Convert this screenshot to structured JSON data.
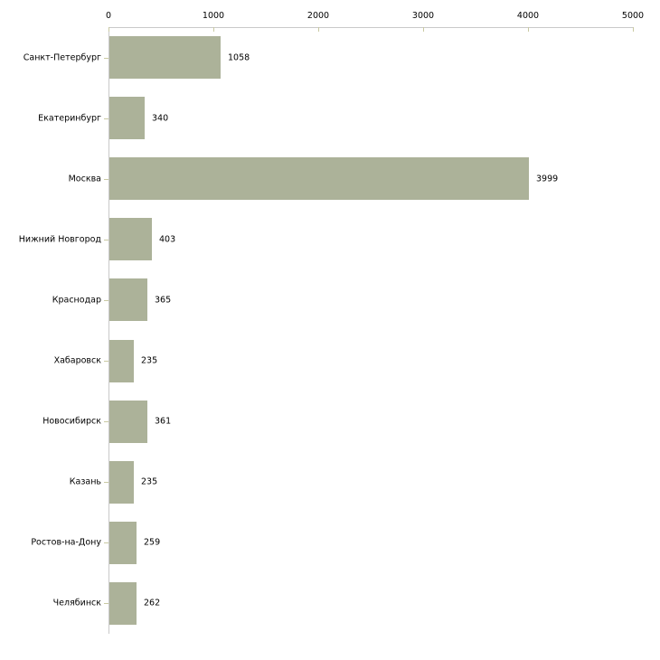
{
  "chart_data": {
    "type": "bar",
    "orientation": "horizontal",
    "title": "",
    "xlabel": "",
    "ylabel": "",
    "categories": [
      "Санкт-Петербург",
      "Екатеринбург",
      "Москва",
      "Нижний Новгород",
      "Краснодар",
      "Хабаровск",
      "Новосибирск",
      "Казань",
      "Ростов-на-Дону",
      "Челябинск"
    ],
    "values": [
      1058,
      340,
      3999,
      403,
      365,
      235,
      361,
      235,
      259,
      262
    ],
    "value_labels": [
      "1058",
      "340",
      "3999",
      "403",
      "365",
      "235",
      "361",
      "235",
      "259",
      "262"
    ],
    "xlim": [
      0,
      5000
    ],
    "xticks": [
      0,
      1000,
      2000,
      3000,
      4000,
      5000
    ],
    "xtick_labels": [
      "0",
      "1000",
      "2000",
      "3000",
      "4000",
      "5000"
    ],
    "grid": false,
    "legend": "none",
    "axis_position": "top",
    "colors": {
      "bar": "#acb299",
      "axis_line": "#c9c9c9",
      "tick_mark": "#c9c9a2",
      "text": "#000000",
      "background": "#ffffff"
    }
  }
}
